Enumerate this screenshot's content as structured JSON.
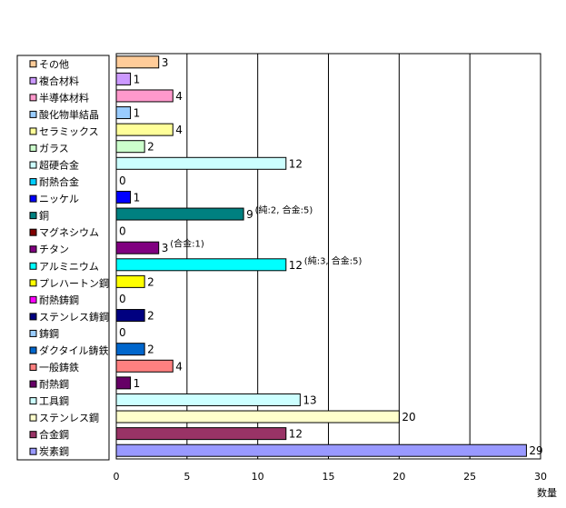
{
  "chart_data": {
    "type": "bar",
    "orientation": "horizontal",
    "categories": [
      "その他",
      "複合材料",
      "半導体材料",
      "酸化物単結晶",
      "セラミックス",
      "ガラス",
      "超硬合金",
      "耐熱合金",
      "ニッケル",
      "銅",
      "マグネシウム",
      "チタン",
      "アルミニウム",
      "プレハートン鋼",
      "耐熱鋳鋼",
      "ステンレス鋳鋼",
      "鋳鋼",
      "ダクタイル鋳鉄",
      "一般鋳鉄",
      "耐熱鋼",
      "工具鋼",
      "ステンレス鋼",
      "合金鋼",
      "炭素鋼"
    ],
    "values": [
      3,
      1,
      4,
      1,
      4,
      2,
      12,
      0,
      1,
      9,
      0,
      3,
      12,
      2,
      0,
      2,
      0,
      2,
      4,
      1,
      13,
      20,
      12,
      29
    ],
    "value_labels": [
      "3",
      "1",
      "4",
      "1",
      "4",
      "2",
      "12",
      "0",
      "1",
      "9",
      "0",
      "3",
      "12",
      "2",
      "0",
      "2",
      "0",
      "2",
      "4",
      "1",
      "13",
      "20",
      "12",
      "29"
    ],
    "colors": [
      "#FFCC99",
      "#CC99FF",
      "#FF99CC",
      "#99CCFF",
      "#FFFF99",
      "#CCFFCC",
      "#CCFFFF",
      "#00CCFF",
      "#0000FF",
      "#008080",
      "#800000",
      "#800080",
      "#00FFFF",
      "#FFFF00",
      "#FF00FF",
      "#000080",
      "#99CCFF",
      "#0066CC",
      "#FF8080",
      "#660066",
      "#CCFFFF",
      "#FFFFCC",
      "#993366",
      "#9999FF"
    ],
    "annotations": [
      {
        "category": "銅",
        "text": "(純:2, 合金:5)"
      },
      {
        "category": "チタン",
        "text": "(合金:1)"
      },
      {
        "category": "アルミニウム",
        "text": "(純:3, 合金:5)"
      }
    ],
    "xlabel": "数量",
    "ylabel": "",
    "title": "",
    "xlim": [
      0,
      30
    ],
    "xticks": [
      0,
      5,
      10,
      15,
      20,
      25,
      30
    ],
    "grid": true,
    "legend_position": "left"
  }
}
